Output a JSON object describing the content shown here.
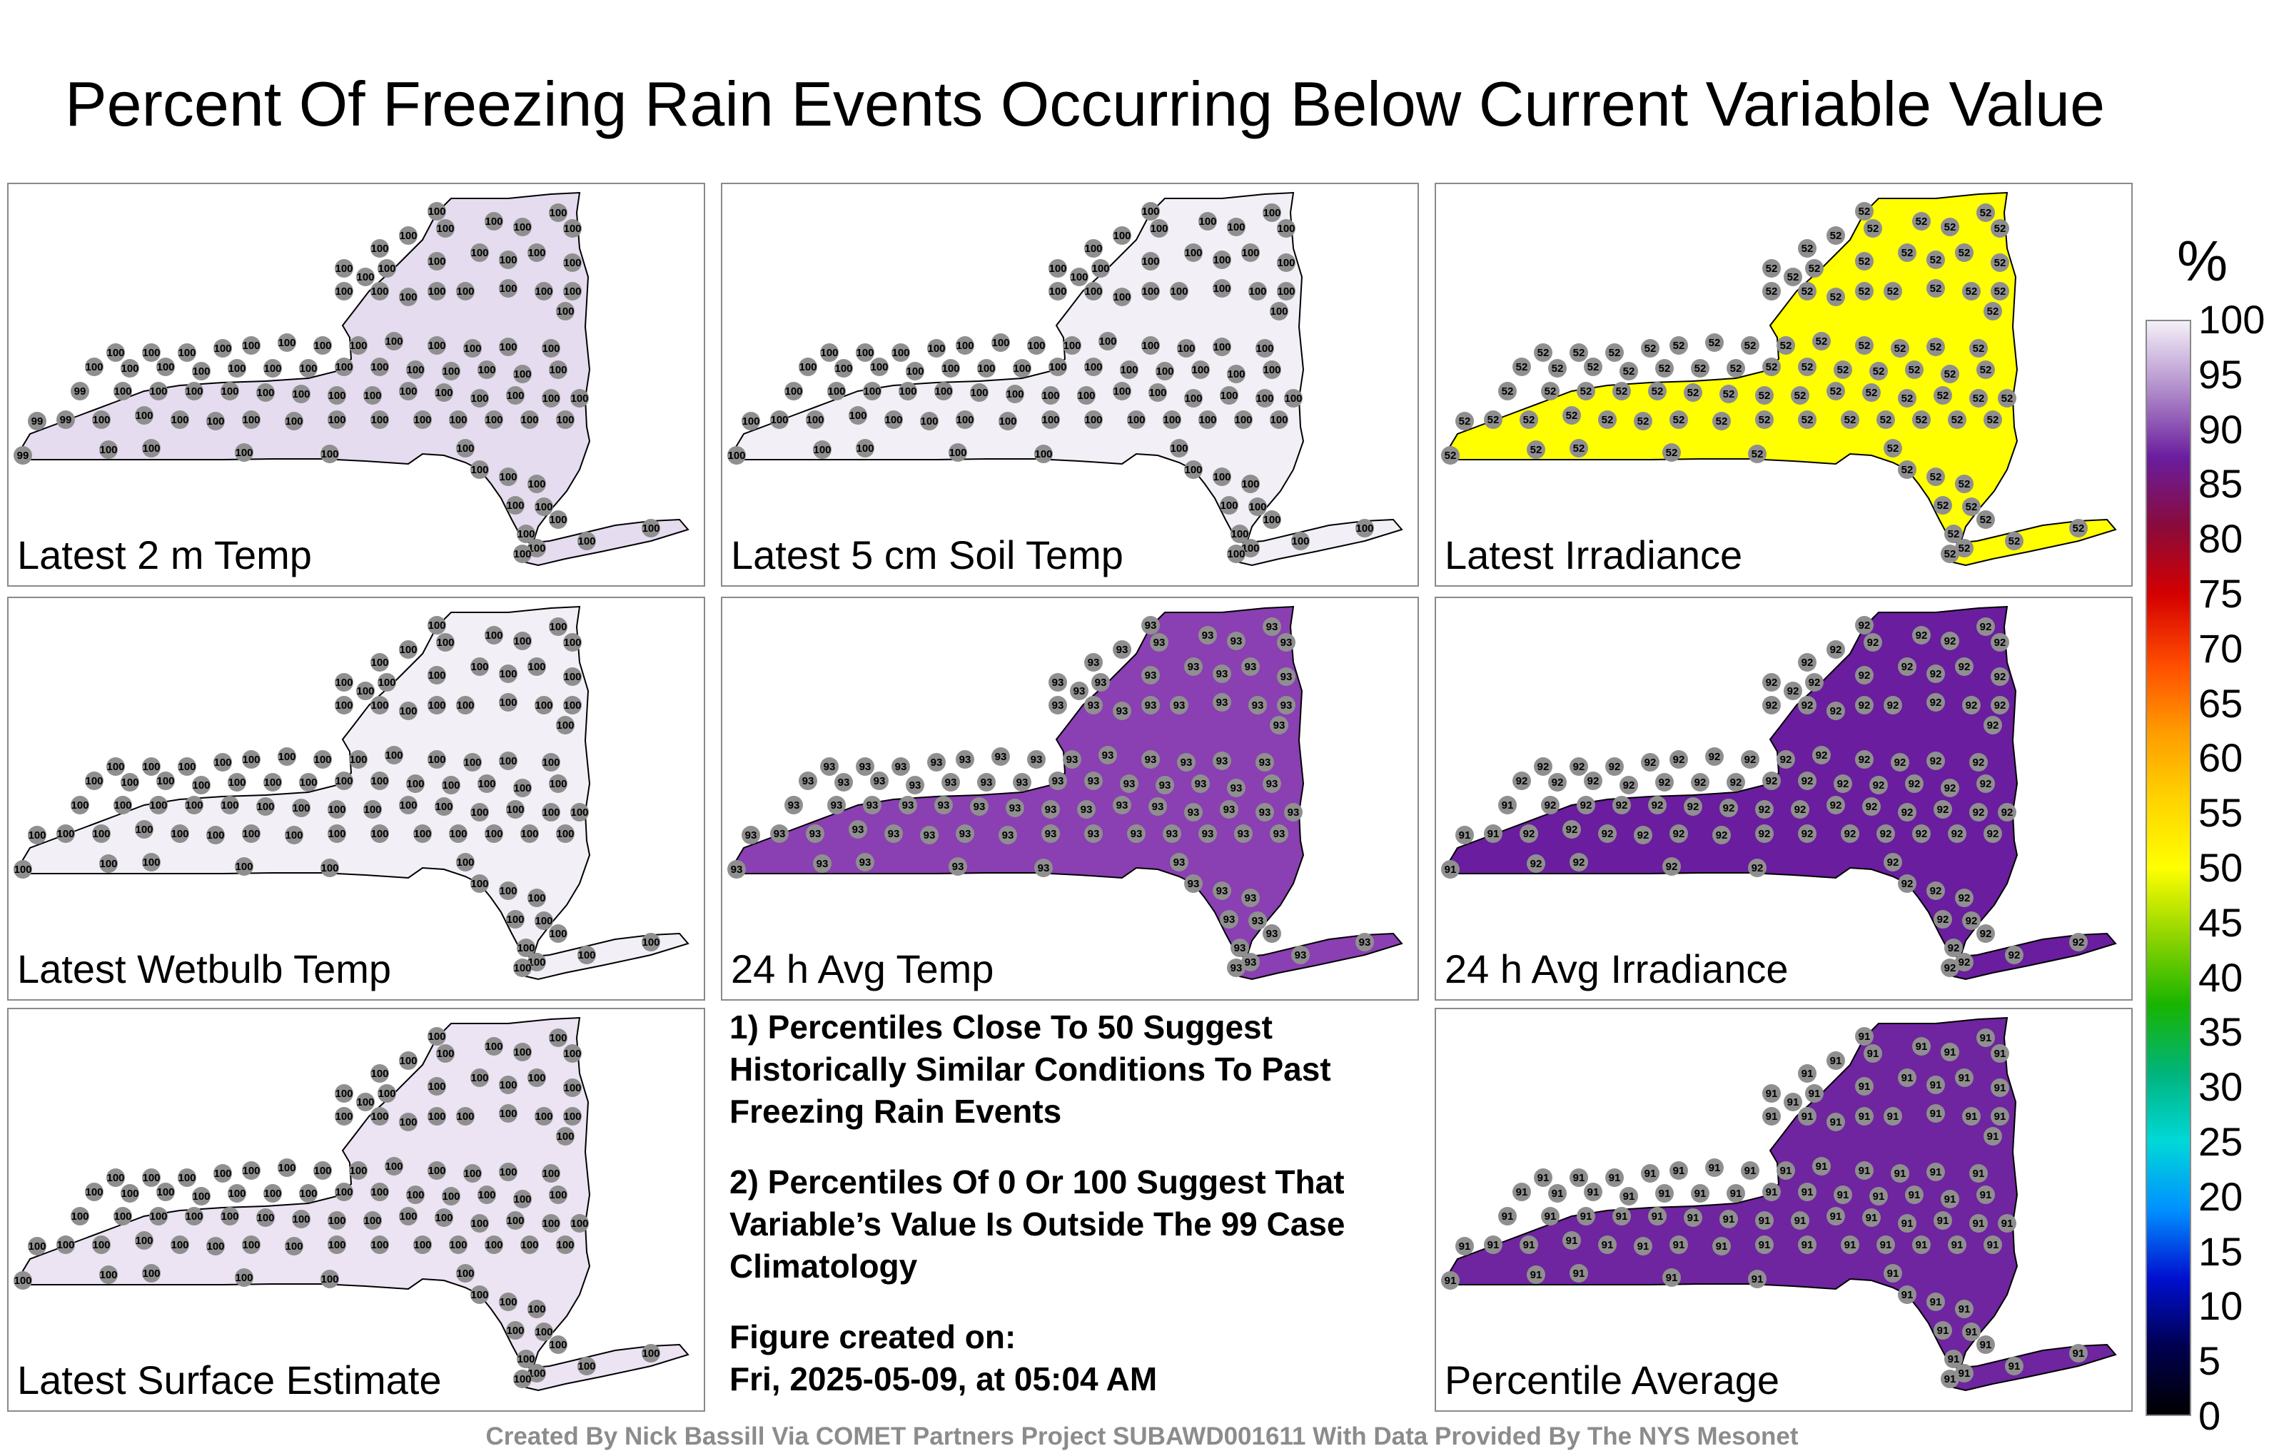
{
  "title": "Percent Of Freezing Rain Events Occurring Below Current Variable Value",
  "panels": [
    {
      "label": "Latest 2 m Temp",
      "fill": "#e6dcef",
      "dot_value": "100",
      "west_value": "99"
    },
    {
      "label": "Latest 5 cm Soil Temp",
      "fill": "#f3eff7",
      "dot_value": "100",
      "west_value": "100"
    },
    {
      "label": "Latest Irradiance",
      "fill": "#ffff00",
      "dot_value": "52",
      "west_value": "52"
    },
    {
      "label": "Latest Wetbulb Temp",
      "fill": "#f3eff7",
      "dot_value": "100",
      "west_value": "100"
    },
    {
      "label": "24 h Avg Temp",
      "fill": "#8a3fb2",
      "dot_value": "93",
      "west_value": "93"
    },
    {
      "label": "24 h Avg Irradiance",
      "fill": "#6a1d9e",
      "dot_value": "92",
      "west_value": "91"
    },
    {
      "label": "Latest Surface Estimate",
      "fill": "#ece3f3",
      "dot_value": "100",
      "west_value": "100"
    },
    {
      "label": "Percentile Average",
      "fill": "#6f24a0",
      "dot_value": "91",
      "west_value": "91"
    }
  ],
  "notes": [
    "1) Percentiles Close To 50 Suggest Historically Similar Conditions To Past Freezing Rain Events",
    "2) Percentiles Of 0 Or 100 Suggest That Variable’s Value Is Outside The 99 Case Climatology",
    "Figure created on:",
    "Fri, 2025-05-09, at 05:04 AM"
  ],
  "footer": "Created By Nick Bassill Via COMET Partners Project SUBAWD001611 With Data Provided By The NYS Mesonet",
  "colorbar": {
    "unit": "%",
    "ticks": [
      "100",
      "95",
      "90",
      "85",
      "80",
      "75",
      "70",
      "65",
      "60",
      "55",
      "50",
      "45",
      "40",
      "35",
      "30",
      "25",
      "20",
      "15",
      "10",
      "5",
      "0"
    ],
    "colors": [
      "#f5f0f8",
      "#b08ccb",
      "#6a1d9e",
      "#8a0a3a",
      "#d40000",
      "#ff4b00",
      "#ff9b00",
      "#ffd400",
      "#ffff00",
      "#8fd400",
      "#18b400",
      "#00b47c",
      "#00d8d8",
      "#0090ff",
      "#0010d0",
      "#000050",
      "#000000"
    ]
  }
}
